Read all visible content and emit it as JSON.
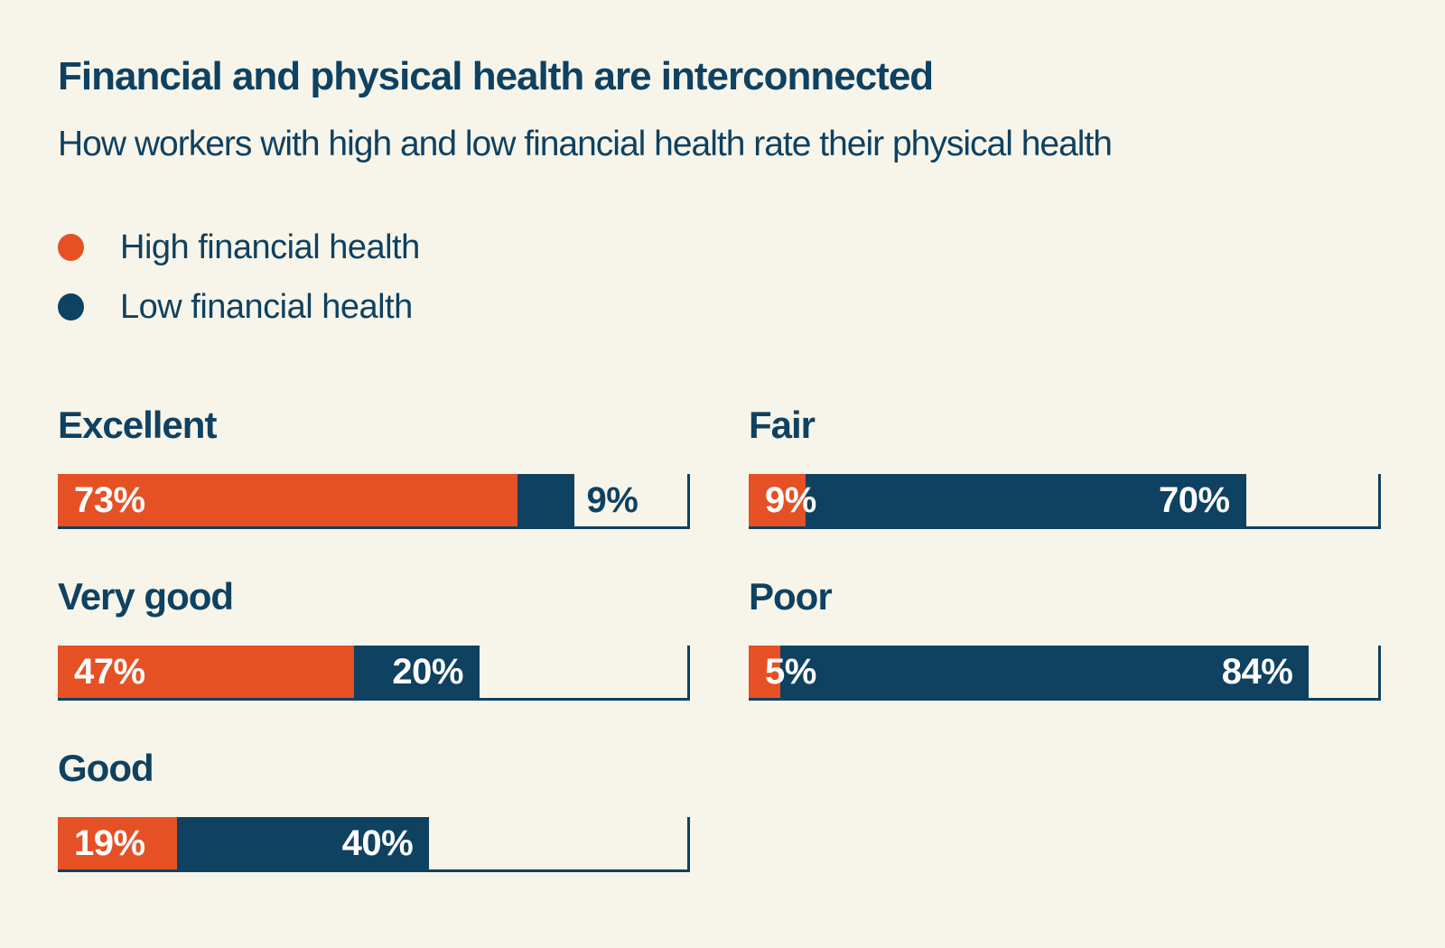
{
  "page": {
    "background_color": "#f7f5ea",
    "text_color": "#0f4160"
  },
  "header": {
    "title": "Financial and physical health are interconnected",
    "subtitle": "How workers with high and low financial health rate their physical health"
  },
  "legend": {
    "position": "top-left",
    "items": [
      {
        "label": "High financial health",
        "color": "#e55125"
      },
      {
        "label": "Low financial health",
        "color": "#0f4160"
      }
    ]
  },
  "chart_data": {
    "type": "bar",
    "variant": "horizontal-stacked",
    "title": "Financial and physical health are interconnected",
    "subtitle": "How workers with high and low financial health rate their physical health",
    "xlim": [
      0,
      100
    ],
    "grid": false,
    "axis_tick_at": 100,
    "legend_position": "top-left",
    "series": [
      {
        "name": "High financial health",
        "color": "#e55125"
      },
      {
        "name": "Low financial health",
        "color": "#0f4160"
      }
    ],
    "categories": [
      "Excellent",
      "Very good",
      "Good",
      "Fair",
      "Poor"
    ],
    "rows": [
      {
        "category": "Excellent",
        "column": "left",
        "high_pct": 73,
        "low_pct": 9,
        "high_label": "73%",
        "low_label": "9%",
        "low_label_placement": "outside"
      },
      {
        "category": "Very good",
        "column": "left",
        "high_pct": 47,
        "low_pct": 20,
        "high_label": "47%",
        "low_label": "20%",
        "low_label_placement": "inside"
      },
      {
        "category": "Good",
        "column": "left",
        "high_pct": 19,
        "low_pct": 40,
        "high_label": "19%",
        "low_label": "40%",
        "low_label_placement": "inside"
      },
      {
        "category": "Fair",
        "column": "right",
        "high_pct": 9,
        "low_pct": 70,
        "high_label": "9%",
        "low_label": "70%",
        "low_label_placement": "inside"
      },
      {
        "category": "Poor",
        "column": "right",
        "high_pct": 5,
        "low_pct": 84,
        "high_label": "5%",
        "low_label": "84%",
        "low_label_placement": "inside"
      }
    ]
  }
}
